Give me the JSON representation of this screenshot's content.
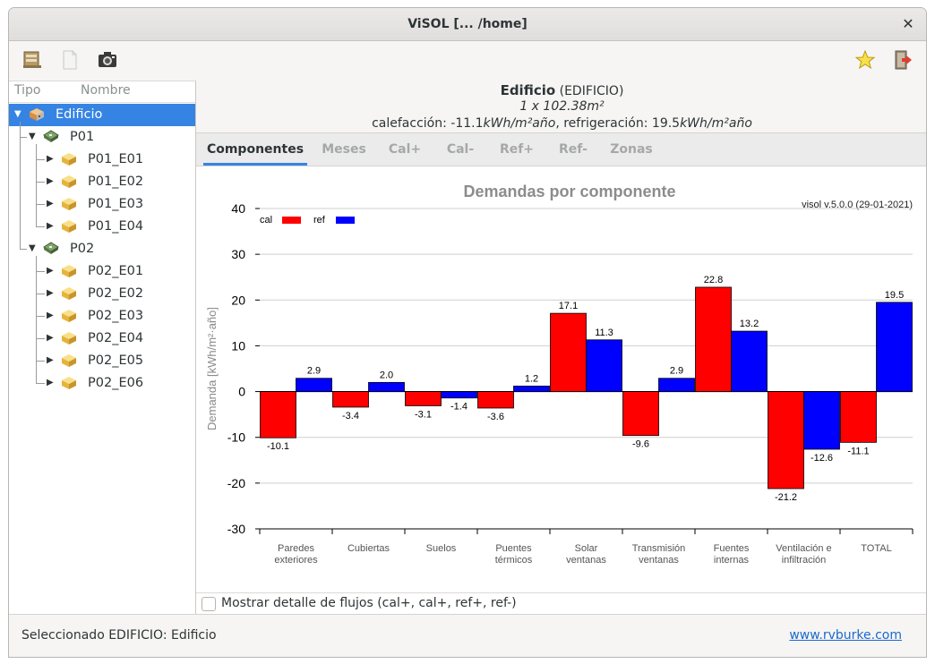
{
  "window": {
    "title": "ViSOL [... /home]"
  },
  "toolbar": {
    "icons": [
      "folder-icon",
      "document-icon",
      "camera-icon",
      "star-icon",
      "exit-icon"
    ]
  },
  "tree": {
    "col_tipo": "Tipo",
    "col_nombre": "Nombre",
    "nodes": [
      {
        "label": "Edificio",
        "level": 0,
        "kind": "building",
        "expanded": true,
        "selected": true
      },
      {
        "label": "P01",
        "level": 1,
        "kind": "floor",
        "expanded": true
      },
      {
        "label": "P01_E01",
        "level": 2,
        "kind": "space"
      },
      {
        "label": "P01_E02",
        "level": 2,
        "kind": "space"
      },
      {
        "label": "P01_E03",
        "level": 2,
        "kind": "space"
      },
      {
        "label": "P01_E04",
        "level": 2,
        "kind": "space"
      },
      {
        "label": "P02",
        "level": 1,
        "kind": "floor",
        "expanded": true
      },
      {
        "label": "P02_E01",
        "level": 2,
        "kind": "space"
      },
      {
        "label": "P02_E02",
        "level": 2,
        "kind": "space"
      },
      {
        "label": "P02_E03",
        "level": 2,
        "kind": "space"
      },
      {
        "label": "P02_E04",
        "level": 2,
        "kind": "space"
      },
      {
        "label": "P02_E05",
        "level": 2,
        "kind": "space"
      },
      {
        "label": "P02_E06",
        "level": 2,
        "kind": "space"
      }
    ]
  },
  "info": {
    "name": "Edificio",
    "type": "(EDIFICIO)",
    "area": "1 x 102.38m²",
    "cal_label": "calefacción:",
    "cal_value": "-11.1",
    "ref_label": "refrigeración:",
    "ref_value": "19.5",
    "unit": "kWh/m²año",
    "sep": ","
  },
  "tabs": [
    {
      "label": "Componentes",
      "active": true
    },
    {
      "label": "Meses"
    },
    {
      "label": "Cal+"
    },
    {
      "label": "Cal-"
    },
    {
      "label": "Ref+"
    },
    {
      "label": "Ref-"
    },
    {
      "label": "Zonas"
    }
  ],
  "chart_data": {
    "type": "bar",
    "title": "Demandas por componente",
    "version": "visol v.5.0.0 (29-01-2021)",
    "ylabel": "Demanda [kWh/m²·año]",
    "ylim": [
      -30,
      40
    ],
    "yticks": [
      40,
      30,
      20,
      10,
      0,
      -10,
      -20,
      -30
    ],
    "grid": true,
    "legend_position": "top-left",
    "categories": [
      [
        "Paredes",
        "exteriores"
      ],
      [
        "Cubiertas"
      ],
      [
        "Suelos"
      ],
      [
        "Puentes",
        "térmicos"
      ],
      [
        "Solar",
        "ventanas"
      ],
      [
        "Transmisión",
        "ventanas"
      ],
      [
        "Fuentes",
        "internas"
      ],
      [
        "Ventilación e",
        "infiltración"
      ],
      [
        "TOTAL"
      ]
    ],
    "series": [
      {
        "name": "cal",
        "color": "#ff0000",
        "values": [
          -10.1,
          -3.4,
          -3.1,
          -3.6,
          17.1,
          -9.6,
          22.8,
          -21.2,
          -11.1
        ]
      },
      {
        "name": "ref",
        "color": "#0000ff",
        "values": [
          2.9,
          2.0,
          -1.4,
          1.2,
          11.3,
          2.9,
          13.2,
          -12.6,
          19.5
        ]
      }
    ]
  },
  "detail": {
    "label": "Mostrar detalle de flujos (cal+, cal+, ref+, ref-)",
    "checked": false
  },
  "status": {
    "text": "Seleccionado EDIFICIO: Edificio",
    "link": "www.rvburke.com"
  }
}
